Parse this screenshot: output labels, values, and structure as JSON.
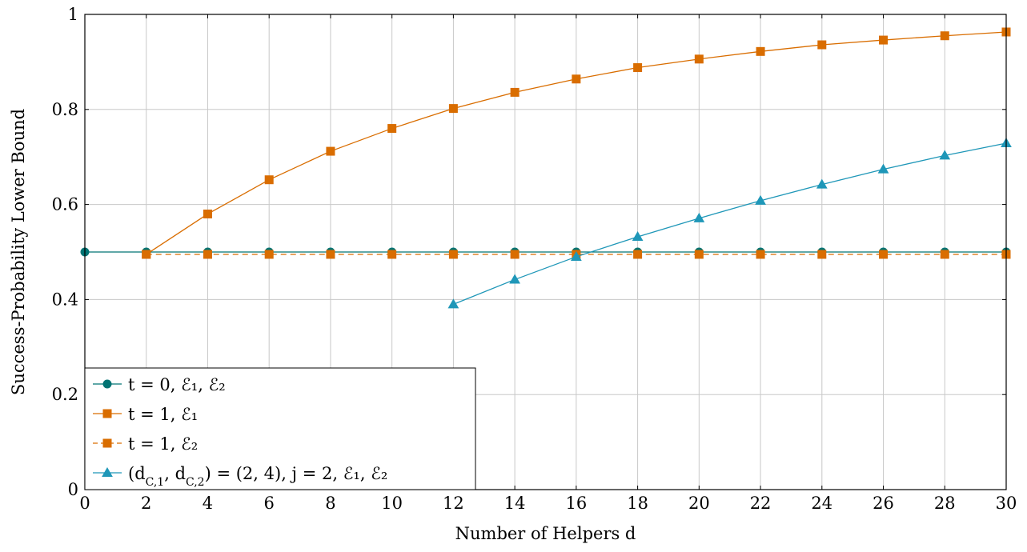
{
  "chart_data": {
    "type": "line",
    "xlabel": "Number of Helpers d",
    "ylabel": "Success-Probability Lower Bound",
    "xlim": [
      0,
      30
    ],
    "ylim": [
      0,
      1
    ],
    "xticks": [
      "0",
      "2",
      "4",
      "6",
      "8",
      "10",
      "12",
      "14",
      "16",
      "18",
      "20",
      "22",
      "24",
      "26",
      "28",
      "30"
    ],
    "yticks": [
      "0",
      "0.2",
      "0.4",
      "0.6",
      "0.8",
      "1"
    ],
    "grid": true,
    "legend_position": "bottom-left",
    "series": [
      {
        "name": "t = 0,  ℰ₁, ℰ₂",
        "color": "#007373",
        "marker": "circle",
        "dash": "solid",
        "x": [
          0,
          2,
          4,
          6,
          8,
          10,
          12,
          14,
          16,
          18,
          20,
          22,
          24,
          26,
          28,
          30
        ],
        "y": [
          0.5,
          0.5,
          0.5,
          0.5,
          0.5,
          0.5,
          0.5,
          0.5,
          0.5,
          0.5,
          0.5,
          0.5,
          0.5,
          0.5,
          0.5,
          0.5
        ]
      },
      {
        "name": "t = 1,  ℰ₁",
        "color": "#d96d00",
        "marker": "square",
        "dash": "solid",
        "x": [
          2,
          4,
          6,
          8,
          10,
          12,
          14,
          16,
          18,
          20,
          22,
          24,
          26,
          28,
          30
        ],
        "y": [
          0.495,
          0.58,
          0.652,
          0.712,
          0.76,
          0.802,
          0.836,
          0.864,
          0.888,
          0.906,
          0.922,
          0.936,
          0.946,
          0.955,
          0.963
        ]
      },
      {
        "name": "t = 1,  ℰ₂",
        "color": "#d96d00",
        "marker": "square",
        "dash": "dashed",
        "x": [
          2,
          4,
          6,
          8,
          10,
          12,
          14,
          16,
          18,
          20,
          22,
          24,
          26,
          28,
          30
        ],
        "y": [
          0.495,
          0.495,
          0.495,
          0.495,
          0.495,
          0.495,
          0.495,
          0.495,
          0.495,
          0.495,
          0.495,
          0.495,
          0.495,
          0.495,
          0.495
        ]
      },
      {
        "name": "(d_C,1, d_C,2) = (2, 4),  j = 2,  ℰ₁, ℰ₂",
        "color": "#1f97b8",
        "marker": "triangle",
        "dash": "solid",
        "x": [
          12,
          14,
          16,
          18,
          20,
          22,
          24,
          26,
          28,
          30
        ],
        "y": [
          0.39,
          0.442,
          0.49,
          0.532,
          0.571,
          0.608,
          0.642,
          0.674,
          0.703,
          0.729
        ]
      }
    ]
  }
}
